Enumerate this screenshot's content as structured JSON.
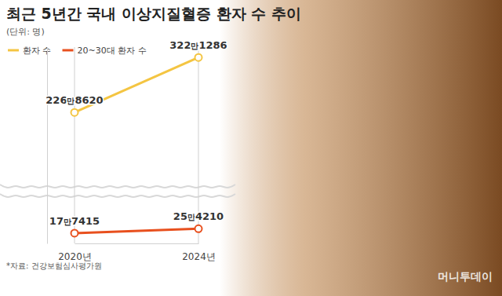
{
  "chart_data": {
    "type": "line",
    "title": "최근 5년간 국내 이상지질혈증 환자 수 추이",
    "subtitle": "(단위: 명)",
    "categories": [
      "2020년",
      "2024년"
    ],
    "series": [
      {
        "name": "환자 수",
        "color": "#f4c542",
        "values": [
          2268620,
          3221286
        ],
        "value_labels": [
          "226만8620",
          "322만1286"
        ]
      },
      {
        "name": "20~30대 환자 수",
        "color": "#e8501e",
        "values": [
          177415,
          254210
        ],
        "value_labels": [
          "17만7415",
          "25만4210"
        ]
      }
    ],
    "ylim": [
      0,
      3400000
    ],
    "grid": true,
    "legend": "top-left",
    "data_labels": true,
    "marker": "circle",
    "tick_labels": "x",
    "source": "*자료: 건강보험심사평가원",
    "credit": "머니투데이"
  }
}
